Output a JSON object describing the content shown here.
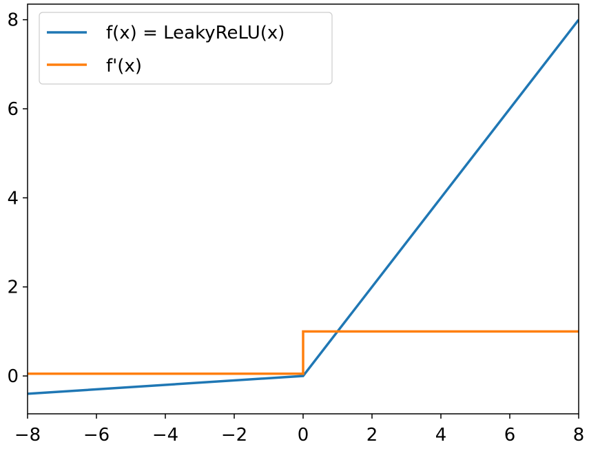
{
  "chart_data": {
    "type": "line",
    "title": "",
    "xlabel": "",
    "ylabel": "",
    "xlim": [
      -8,
      8
    ],
    "ylim": [
      -0.85,
      8.35
    ],
    "xticks": [
      -8,
      -6,
      -4,
      -2,
      0,
      2,
      4,
      6,
      8
    ],
    "xtick_labels": [
      "−8",
      "−6",
      "−4",
      "−2",
      "0",
      "2",
      "4",
      "6",
      "8"
    ],
    "yticks": [
      0,
      2,
      4,
      6,
      8
    ],
    "ytick_labels": [
      "0",
      "2",
      "4",
      "6",
      "8"
    ],
    "grid": false,
    "legend_position": "upper-left",
    "series": [
      {
        "name": "f(x) = LeakyReLU(x)",
        "color": "#1f77b4",
        "x": [
          -8,
          0,
          8
        ],
        "y": [
          -0.4,
          0,
          8
        ]
      },
      {
        "name": "f'(x)",
        "color": "#ff7f0e",
        "x": [
          -8,
          0,
          0,
          8
        ],
        "y": [
          0.05,
          0.05,
          1,
          1
        ]
      }
    ]
  }
}
